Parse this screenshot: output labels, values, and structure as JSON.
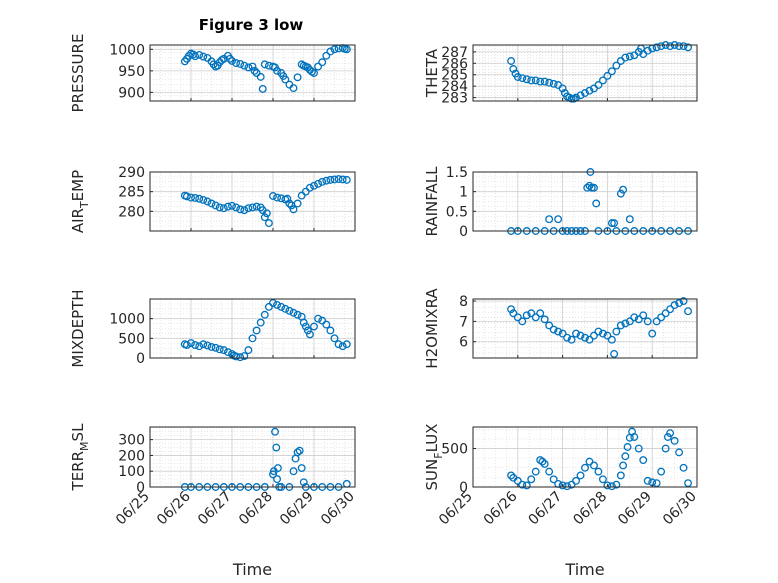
{
  "figure_title": "Figure 3 low",
  "chart_data": [
    {
      "type": "scatter",
      "name_key": "pressure",
      "ylabel": "PRESSURE",
      "ylabel_sub": "",
      "ylim": [
        880,
        1010
      ],
      "yticks": [
        900,
        950,
        1000
      ],
      "xlim": [
        0,
        5
      ],
      "xticks": [],
      "xlabel": "",
      "x": [
        0.85,
        0.9,
        0.95,
        1.0,
        1.05,
        1.1,
        1.2,
        1.3,
        1.4,
        1.5,
        1.55,
        1.6,
        1.65,
        1.7,
        1.75,
        1.8,
        1.9,
        1.95,
        2.0,
        2.1,
        2.2,
        2.3,
        2.4,
        2.5,
        2.55,
        2.6,
        2.7,
        2.75,
        2.8,
        2.9,
        3.0,
        3.05,
        3.1,
        3.2,
        3.25,
        3.3,
        3.4,
        3.5,
        3.6,
        3.7,
        3.75,
        3.8,
        3.85,
        3.9,
        3.95,
        4.0,
        4.1,
        4.2,
        4.3,
        4.4,
        4.5,
        4.6,
        4.7,
        4.75,
        4.8
      ],
      "y": [
        972,
        978,
        985,
        990,
        988,
        984,
        987,
        983,
        980,
        972,
        965,
        960,
        962,
        970,
        975,
        978,
        985,
        978,
        973,
        968,
        966,
        962,
        958,
        960,
        950,
        945,
        936,
        908,
        965,
        962,
        960,
        958,
        950,
        945,
        938,
        930,
        918,
        910,
        935,
        965,
        962,
        960,
        958,
        952,
        948,
        945,
        960,
        970,
        985,
        995,
        1000,
        1002,
        1003,
        1001,
        1000
      ]
    },
    {
      "type": "scatter",
      "name_key": "theta",
      "ylabel": "THETA",
      "ylabel_sub": "",
      "ylim": [
        282.7,
        287.6
      ],
      "yticks": [
        283,
        284,
        285,
        286,
        287
      ],
      "xlim": [
        0,
        5
      ],
      "xticks": [],
      "xlabel": "",
      "x": [
        0.85,
        0.9,
        0.95,
        1.0,
        1.1,
        1.2,
        1.3,
        1.4,
        1.5,
        1.6,
        1.7,
        1.8,
        1.9,
        2.0,
        2.05,
        2.1,
        2.15,
        2.2,
        2.25,
        2.3,
        2.4,
        2.5,
        2.6,
        2.7,
        2.8,
        2.9,
        3.0,
        3.1,
        3.2,
        3.3,
        3.4,
        3.5,
        3.6,
        3.7,
        3.75,
        3.8,
        3.9,
        4.0,
        4.1,
        4.2,
        4.3,
        4.4,
        4.5,
        4.6,
        4.7,
        4.8
      ],
      "y": [
        286.2,
        285.5,
        285.1,
        284.8,
        284.7,
        284.6,
        284.5,
        284.5,
        284.4,
        284.4,
        284.3,
        284.2,
        284.1,
        283.8,
        283.4,
        283.1,
        283.0,
        282.9,
        282.9,
        283.0,
        283.2,
        283.4,
        283.6,
        283.8,
        284.1,
        284.5,
        284.9,
        285.3,
        285.8,
        286.2,
        286.5,
        286.6,
        286.7,
        287.0,
        287.3,
        286.8,
        287.1,
        287.3,
        287.4,
        287.5,
        287.6,
        287.5,
        287.6,
        287.5,
        287.5,
        287.4
      ]
    },
    {
      "type": "scatter",
      "name_key": "air_temp",
      "ylabel": "AIR",
      "ylabel_sub": "T",
      "ylabel_suffix": "EMP",
      "ylim": [
        275,
        290
      ],
      "yticks": [
        280,
        285,
        290
      ],
      "xlim": [
        0,
        5
      ],
      "xticks": [],
      "xlabel": "",
      "x": [
        0.85,
        0.9,
        1.0,
        1.1,
        1.2,
        1.3,
        1.4,
        1.5,
        1.6,
        1.7,
        1.8,
        1.9,
        2.0,
        2.1,
        2.2,
        2.3,
        2.4,
        2.5,
        2.6,
        2.7,
        2.75,
        2.8,
        2.85,
        2.9,
        3.0,
        3.1,
        3.2,
        3.3,
        3.35,
        3.4,
        3.45,
        3.5,
        3.6,
        3.7,
        3.8,
        3.9,
        4.0,
        4.1,
        4.2,
        4.3,
        4.4,
        4.5,
        4.6,
        4.7,
        4.8
      ],
      "y": [
        284,
        283.8,
        283.5,
        283.4,
        283.2,
        282.9,
        282.5,
        282,
        281.5,
        281.0,
        280.8,
        281.2,
        281.4,
        281,
        280.5,
        280.3,
        280.8,
        281.0,
        281.2,
        281,
        280.3,
        278.5,
        279.5,
        277.0,
        283.9,
        283.5,
        283.3,
        283.0,
        283.2,
        282.0,
        281.5,
        280.5,
        282,
        284,
        285,
        286,
        286.5,
        287.0,
        287.5,
        287.8,
        288.0,
        288.1,
        288.2,
        288.1,
        288.0
      ]
    },
    {
      "type": "scatter",
      "name_key": "rainfall",
      "ylabel": "RAINFALL",
      "ylabel_sub": "",
      "ylim": [
        0,
        1.5
      ],
      "yticks": [
        0,
        0.5,
        1,
        1.5
      ],
      "xlim": [
        0,
        5
      ],
      "xticks": [],
      "xlabel": "",
      "x": [
        0.85,
        1.0,
        1.2,
        1.4,
        1.6,
        1.7,
        1.8,
        1.9,
        2.0,
        2.1,
        2.2,
        2.3,
        2.4,
        2.5,
        2.55,
        2.6,
        2.62,
        2.65,
        2.7,
        2.75,
        2.8,
        3.0,
        3.1,
        3.15,
        3.2,
        3.3,
        3.35,
        3.4,
        3.5,
        3.6,
        3.8,
        4.0,
        4.2,
        4.4,
        4.6,
        4.8
      ],
      "y": [
        0,
        0,
        0,
        0,
        0,
        0.3,
        0,
        0.3,
        0,
        0,
        0,
        0,
        0,
        0,
        1.1,
        1.15,
        1.5,
        1.1,
        1.1,
        0.7,
        0,
        0,
        0.2,
        0.2,
        0,
        0.95,
        1.05,
        0,
        0.3,
        0,
        0,
        0,
        0,
        0,
        0,
        0
      ]
    },
    {
      "type": "scatter",
      "name_key": "mixdepth",
      "ylabel": "MIXDEPTH",
      "ylabel_sub": "",
      "ylim": [
        0,
        1500
      ],
      "yticks": [
        0,
        500,
        1000
      ],
      "xlim": [
        0,
        5
      ],
      "xticks": [],
      "xlabel": "",
      "x": [
        0.85,
        0.9,
        1.0,
        1.1,
        1.2,
        1.3,
        1.4,
        1.5,
        1.6,
        1.7,
        1.8,
        1.9,
        2.0,
        2.05,
        2.1,
        2.2,
        2.3,
        2.4,
        2.5,
        2.6,
        2.7,
        2.8,
        2.9,
        3.0,
        3.1,
        3.2,
        3.3,
        3.4,
        3.5,
        3.6,
        3.7,
        3.75,
        3.8,
        3.85,
        3.9,
        4.0,
        4.1,
        4.2,
        4.3,
        4.4,
        4.5,
        4.6,
        4.7,
        4.8
      ],
      "y": [
        350,
        330,
        380,
        330,
        300,
        350,
        320,
        280,
        260,
        220,
        200,
        150,
        100,
        60,
        40,
        20,
        50,
        200,
        500,
        700,
        900,
        1100,
        1300,
        1400,
        1350,
        1300,
        1250,
        1200,
        1150,
        1100,
        1050,
        900,
        800,
        700,
        600,
        800,
        1000,
        950,
        850,
        700,
        500,
        350,
        300,
        350
      ]
    },
    {
      "type": "scatter",
      "name_key": "h2omixra",
      "ylabel": "H2OMIXRA",
      "ylabel_sub": "",
      "ylim": [
        5.2,
        8.1
      ],
      "yticks": [
        6,
        7,
        8
      ],
      "xlim": [
        0,
        5
      ],
      "xticks": [],
      "xlabel": "",
      "x": [
        0.85,
        0.9,
        1.0,
        1.1,
        1.2,
        1.3,
        1.4,
        1.5,
        1.6,
        1.7,
        1.8,
        1.9,
        2.0,
        2.1,
        2.2,
        2.3,
        2.4,
        2.5,
        2.6,
        2.7,
        2.8,
        2.9,
        3.0,
        3.1,
        3.15,
        3.2,
        3.3,
        3.4,
        3.5,
        3.6,
        3.7,
        3.8,
        3.9,
        4.0,
        4.1,
        4.2,
        4.3,
        4.4,
        4.5,
        4.6,
        4.7,
        4.8
      ],
      "y": [
        7.6,
        7.4,
        7.2,
        7.0,
        7.3,
        7.4,
        7.2,
        7.4,
        7.1,
        6.8,
        6.6,
        6.5,
        6.4,
        6.2,
        6.1,
        6.4,
        6.3,
        6.2,
        6.1,
        6.3,
        6.5,
        6.4,
        6.3,
        6.1,
        5.4,
        6.5,
        6.8,
        6.9,
        7.0,
        7.2,
        7.1,
        7.3,
        7.0,
        6.4,
        7.0,
        7.2,
        7.4,
        7.6,
        7.8,
        7.9,
        8.0,
        7.5
      ]
    },
    {
      "type": "scatter",
      "name_key": "terrain",
      "ylabel": "TERR",
      "ylabel_sub": "M",
      "ylabel_suffix": "SL",
      "ylim": [
        0,
        380
      ],
      "yticks": [
        0,
        100,
        200,
        300
      ],
      "xlim": [
        0,
        5
      ],
      "xticks": [
        0,
        1,
        2,
        3,
        4,
        5
      ],
      "xticklabels": [
        "06/25",
        "06/26",
        "06/27",
        "06/28",
        "06/29",
        "06/30"
      ],
      "xlabel": "Time",
      "x": [
        0.85,
        1.0,
        1.2,
        1.4,
        1.6,
        1.8,
        2.0,
        2.2,
        2.4,
        2.6,
        2.8,
        3.0,
        3.02,
        3.05,
        3.08,
        3.1,
        3.12,
        3.15,
        3.2,
        3.4,
        3.5,
        3.55,
        3.6,
        3.65,
        3.7,
        3.75,
        3.8,
        4.0,
        4.2,
        4.4,
        4.6,
        4.8
      ],
      "y": [
        0,
        0,
        0,
        0,
        0,
        0,
        0,
        0,
        0,
        0,
        0,
        80,
        100,
        350,
        250,
        50,
        120,
        0,
        0,
        0,
        100,
        180,
        220,
        230,
        120,
        30,
        0,
        0,
        0,
        0,
        0,
        20
      ]
    },
    {
      "type": "scatter",
      "name_key": "sunflux",
      "ylabel": "SUN",
      "ylabel_sub": "F",
      "ylabel_suffix": "LUX",
      "ylim": [
        0,
        780
      ],
      "yticks": [
        0,
        500
      ],
      "xlim": [
        0,
        5
      ],
      "xticks": [
        0,
        1,
        2,
        3,
        4,
        5
      ],
      "xticklabels": [
        "06/25",
        "06/26",
        "06/27",
        "06/28",
        "06/29",
        "06/30"
      ],
      "xlabel": "Time",
      "x": [
        0.85,
        0.9,
        1.0,
        1.1,
        1.2,
        1.3,
        1.4,
        1.5,
        1.55,
        1.6,
        1.7,
        1.8,
        1.9,
        2.0,
        2.1,
        2.2,
        2.3,
        2.4,
        2.5,
        2.6,
        2.7,
        2.8,
        2.9,
        3.0,
        3.1,
        3.2,
        3.3,
        3.35,
        3.4,
        3.45,
        3.5,
        3.55,
        3.6,
        3.7,
        3.8,
        3.9,
        4.0,
        4.1,
        4.2,
        4.3,
        4.35,
        4.4,
        4.5,
        4.6,
        4.7,
        4.8
      ],
      "y": [
        150,
        120,
        80,
        30,
        20,
        100,
        200,
        350,
        330,
        300,
        200,
        100,
        40,
        20,
        10,
        30,
        80,
        150,
        250,
        330,
        280,
        200,
        100,
        20,
        10,
        30,
        150,
        280,
        400,
        520,
        640,
        720,
        650,
        500,
        350,
        80,
        60,
        50,
        200,
        500,
        650,
        700,
        600,
        450,
        250,
        50
      ]
    }
  ]
}
